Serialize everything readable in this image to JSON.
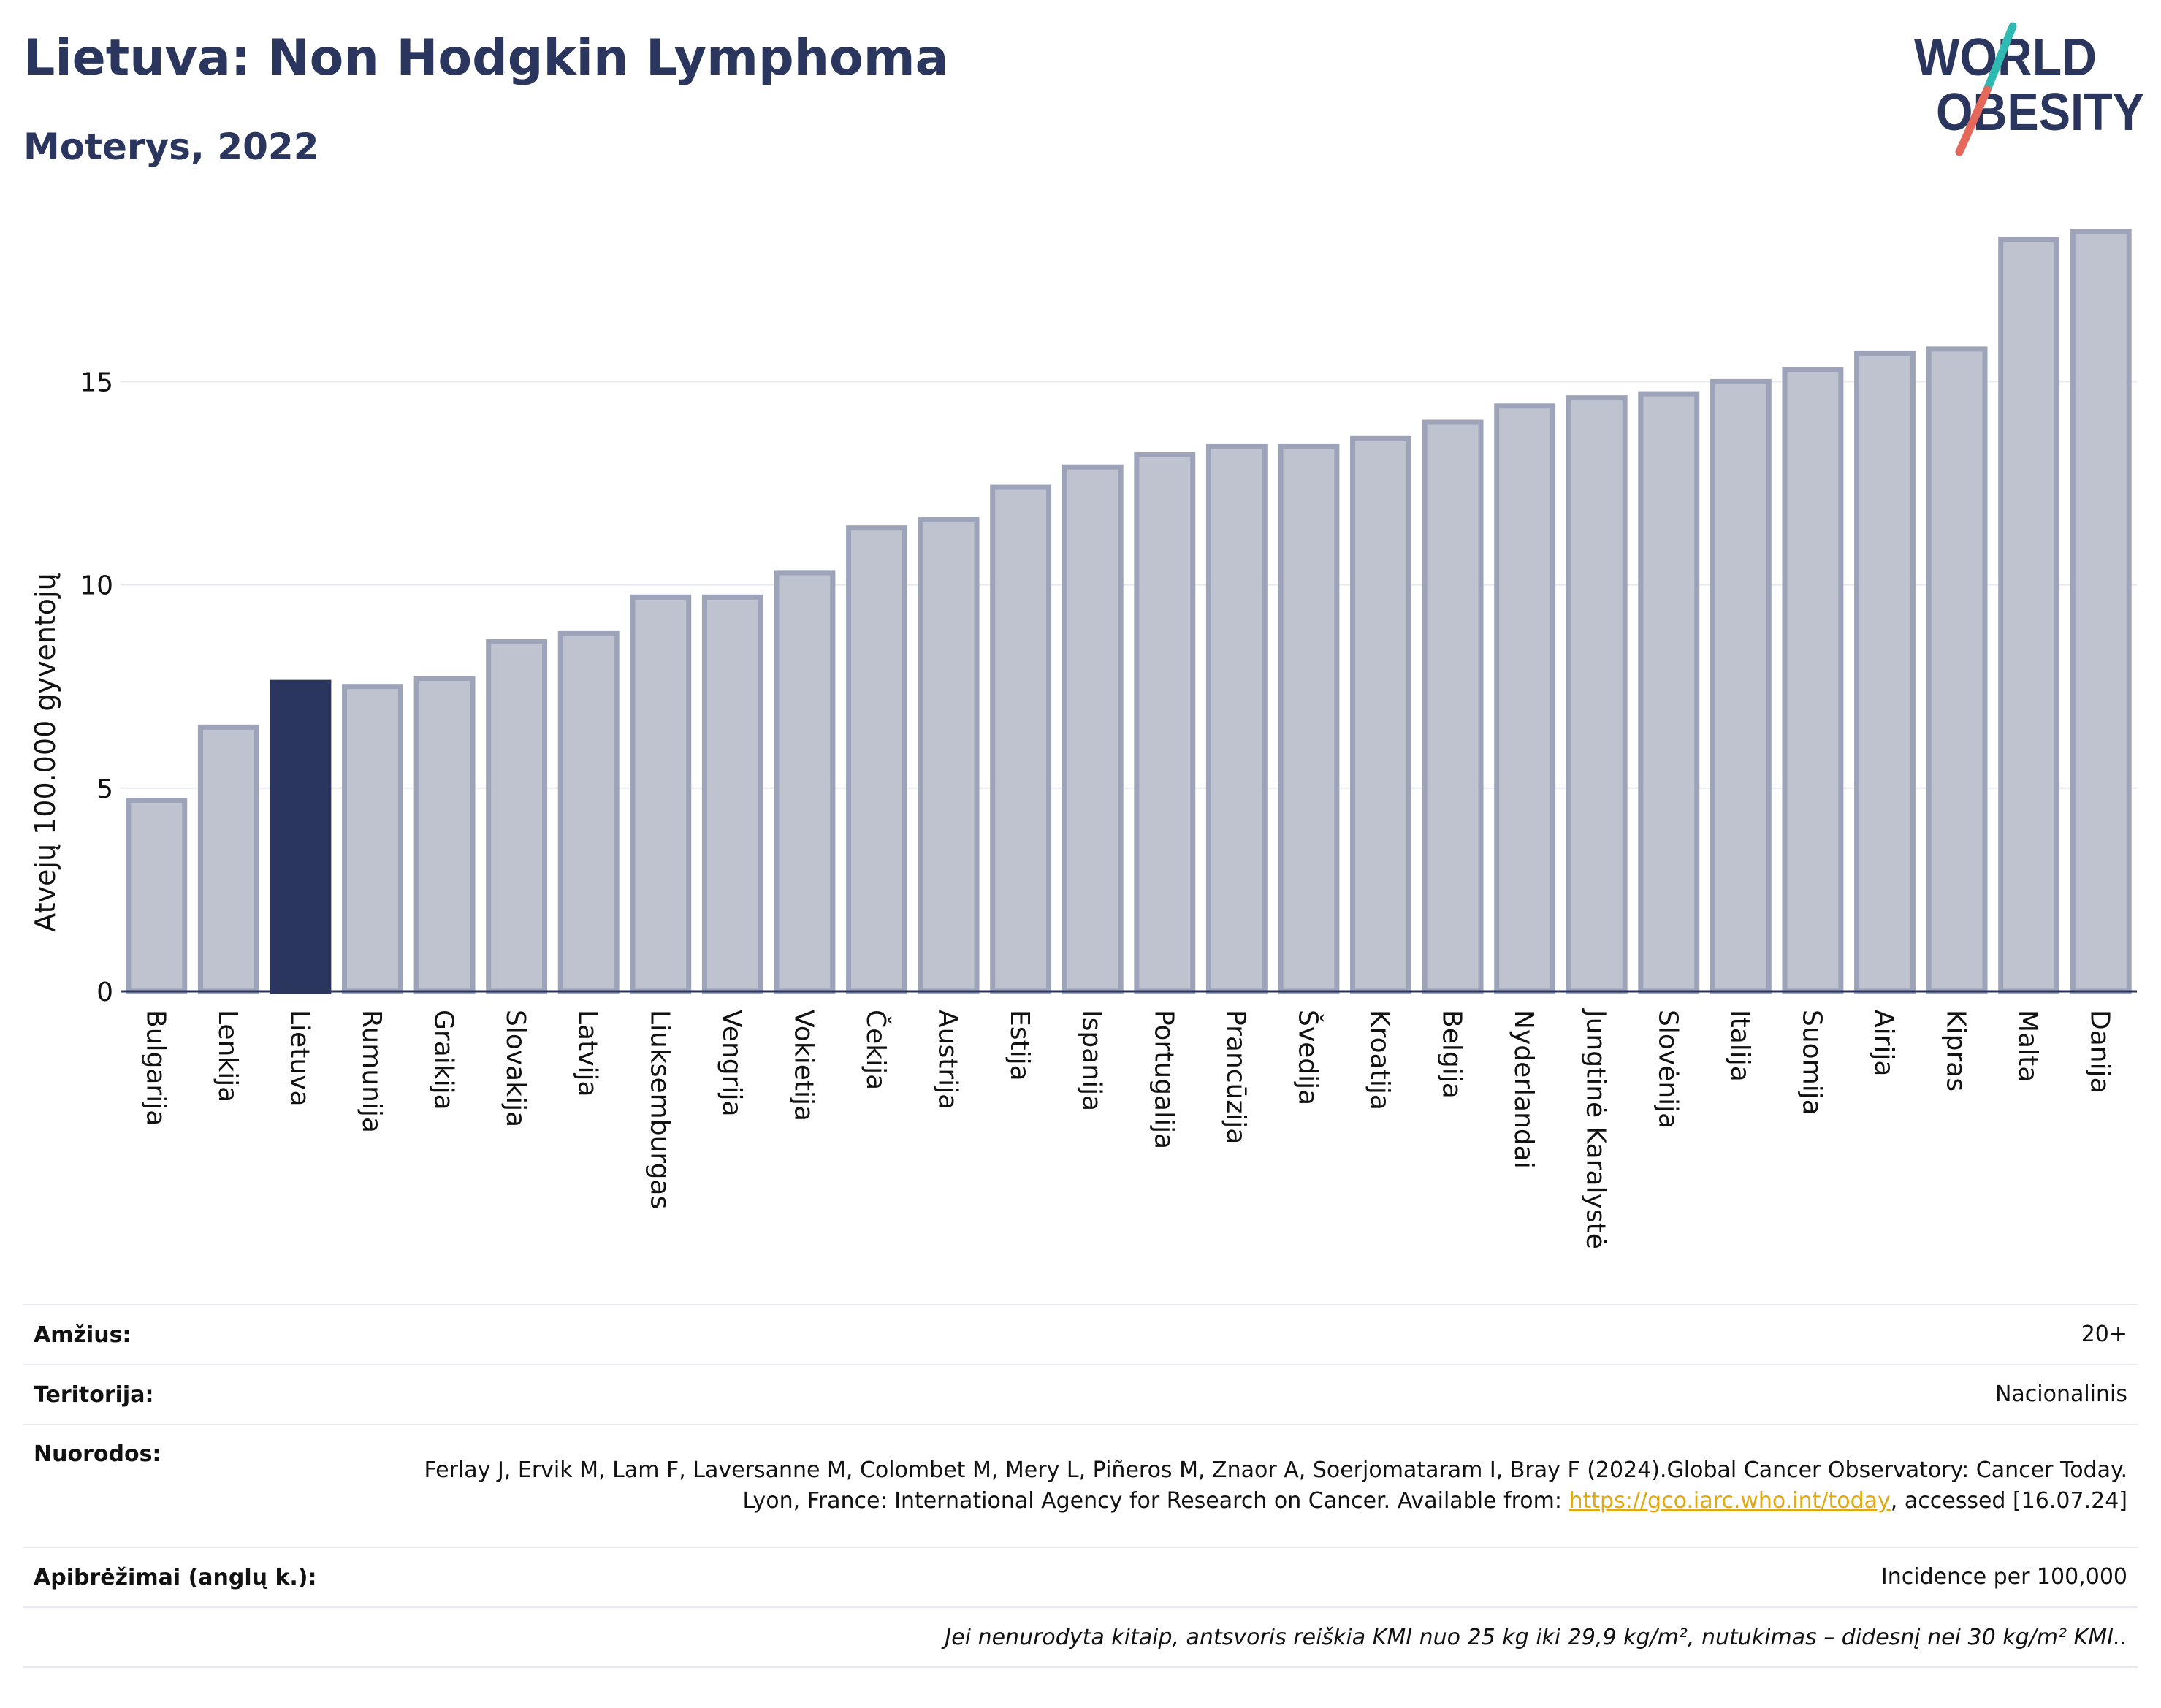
{
  "header": {
    "title": "Lietuva: Non Hodgkin Lymphoma",
    "subtitle": "Moterys, 2022"
  },
  "logo": {
    "line1": "WORLD",
    "line2": "OBESITY",
    "slash_colors": [
      "#2fb9b3",
      "#e5685a"
    ]
  },
  "colors": {
    "highlight": "#2a365e",
    "bar_fill": "#bfc3cf",
    "bar_stroke": "#9da3b8",
    "grid": "#e6e9f0",
    "axis": "#2a365e",
    "link": "#e0a911"
  },
  "chart_data": {
    "type": "bar",
    "ylabel": "Atvejų 100.000 gyventojų",
    "ylim": [
      0,
      19.5
    ],
    "yticks": [
      0,
      5,
      10,
      15
    ],
    "grid": true,
    "highlight": "Lietuva",
    "categories": [
      "Bulgarija",
      "Lenkija",
      "Lietuva",
      "Rumunija",
      "Graikija",
      "Slovakija",
      "Latvija",
      "Liuksemburgas",
      "Vengrija",
      "Vokietija",
      "Čekija",
      "Austrija",
      "Estija",
      "Ispanija",
      "Portugalija",
      "Prancūzija",
      "Švedija",
      "Kroatija",
      "Belgija",
      "Nyderlandai",
      "Jungtinė Karalystė",
      "Slovėnija",
      "Italija",
      "Suomija",
      "Airija",
      "Kipras",
      "Malta",
      "Danija"
    ],
    "values": [
      4.7,
      6.5,
      7.6,
      7.5,
      7.7,
      8.6,
      8.8,
      9.7,
      9.7,
      10.3,
      11.4,
      11.6,
      12.4,
      12.9,
      13.2,
      13.4,
      13.4,
      13.6,
      14.0,
      14.4,
      14.6,
      14.7,
      15.0,
      15.3,
      15.7,
      15.8,
      18.5,
      18.7
    ]
  },
  "info": {
    "rows": [
      {
        "label": "Amžius:",
        "value": "20+"
      },
      {
        "label": "Teritorija:",
        "value": "Nacionalinis"
      },
      {
        "label": "Nuorodos:",
        "value_pre": "Ferlay J, Ervik M, Lam F, Laversanne M, Colombet M, Mery L, Piñeros M, Znaor A, Soerjomataram I, Bray F (2024).Global Cancer Observatory: Cancer Today. Lyon, France: International Agency for Research on Cancer. Available from: ",
        "link": "https://gco.iarc.who.int/today",
        "value_post": ", accessed [16.07.24]"
      },
      {
        "label": "Apibrėžimai (anglų k.):",
        "value": "Incidence per 100,000"
      }
    ],
    "note": "Jei nenurodyta kitaip, antsvoris reiškia KMI nuo 25 kg iki 29,9 kg/m², nutukimas – didesnį nei 30 kg/m² KMI.."
  }
}
